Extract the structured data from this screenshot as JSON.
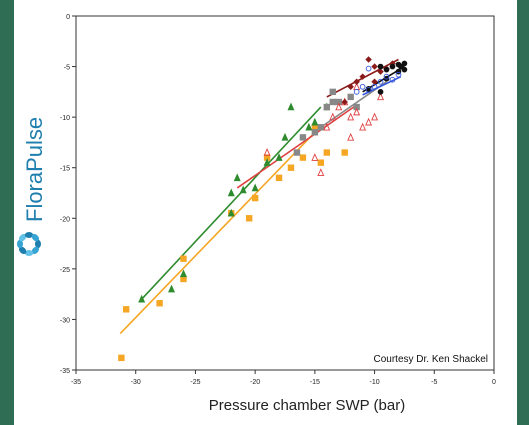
{
  "brand": {
    "name": "FloraPulse",
    "color": "#1f7fae",
    "logo_colors": [
      "#1f7fae",
      "#37a4d3",
      "#62c1e6"
    ]
  },
  "colors": {
    "background": "#2f6e54",
    "panel": "#ffffff"
  },
  "chart_data": {
    "type": "scatter",
    "title": "",
    "xlabel": "Pressure chamber SWP (bar)",
    "ylabel": "",
    "annotation": "Courtesy Dr. Ken Shackel",
    "xlim": [
      -35,
      0
    ],
    "ylim": [
      -35,
      0
    ],
    "x_ticks": [
      -35,
      -30,
      -25,
      -20,
      -15,
      -10,
      -5,
      0
    ],
    "y_ticks": [
      -35,
      -30,
      -25,
      -20,
      -15,
      -10,
      -5,
      0
    ],
    "grid": false,
    "legend": "none",
    "series": [
      {
        "marker": "square-filled",
        "color": "#f5a623",
        "points": [
          [
            -31.2,
            -33.8
          ],
          [
            -30.8,
            -29.0
          ],
          [
            -28.0,
            -28.4
          ],
          [
            -26.0,
            -26.0
          ],
          [
            -26.0,
            -24.0
          ],
          [
            -22.0,
            -19.5
          ],
          [
            -20.5,
            -20.0
          ],
          [
            -20.0,
            -18.0
          ],
          [
            -18.0,
            -16.0
          ],
          [
            -17.0,
            -15.0
          ],
          [
            -16.0,
            -14.0
          ],
          [
            -14.5,
            -14.5
          ],
          [
            -14.0,
            -13.5
          ],
          [
            -12.5,
            -13.5
          ],
          [
            -15.0,
            -11.0
          ],
          [
            -19.0,
            -14.0
          ]
        ],
        "fit": [
          [
            -31.3,
            -31.4
          ],
          [
            -15.0,
            -11.5
          ]
        ]
      },
      {
        "marker": "triangle-filled",
        "color": "#2e8b2e",
        "points": [
          [
            -29.5,
            -28.0
          ],
          [
            -27.0,
            -27.0
          ],
          [
            -26.0,
            -25.5
          ],
          [
            -22.0,
            -19.5
          ],
          [
            -22.0,
            -17.5
          ],
          [
            -21.5,
            -16.0
          ],
          [
            -21.0,
            -17.2
          ],
          [
            -20.0,
            -17.0
          ],
          [
            -19.0,
            -14.5
          ],
          [
            -18.0,
            -14.0
          ],
          [
            -17.5,
            -12.0
          ],
          [
            -17.0,
            -9.0
          ],
          [
            -15.5,
            -11.0
          ],
          [
            -15.0,
            -10.5
          ],
          [
            -14.0,
            -9.0
          ]
        ],
        "fit": [
          [
            -29.5,
            -28.0
          ],
          [
            -14.5,
            -9.0
          ]
        ]
      },
      {
        "marker": "square-filled",
        "color": "#888888",
        "points": [
          [
            -16.5,
            -13.5
          ],
          [
            -16.0,
            -12.0
          ],
          [
            -15.0,
            -11.5
          ],
          [
            -14.5,
            -11.0
          ],
          [
            -14.0,
            -9.0
          ],
          [
            -13.5,
            -8.5
          ],
          [
            -13.0,
            -8.5
          ],
          [
            -13.5,
            -7.5
          ],
          [
            -12.0,
            -8.0
          ],
          [
            -11.5,
            -9.0
          ]
        ],
        "fit": [
          [
            -14.5,
            -11.0
          ],
          [
            -9.0,
            -6.5
          ]
        ]
      },
      {
        "marker": "triangle-open",
        "color": "#e04040",
        "points": [
          [
            -19.0,
            -13.5
          ],
          [
            -15.0,
            -14.0
          ],
          [
            -14.5,
            -15.5
          ],
          [
            -12.0,
            -10.0
          ],
          [
            -11.5,
            -9.5
          ],
          [
            -11.0,
            -11.0
          ],
          [
            -10.5,
            -10.5
          ],
          [
            -10.0,
            -10.0
          ],
          [
            -11.5,
            -7.0
          ],
          [
            -12.5,
            -8.5
          ],
          [
            -13.0,
            -9.0
          ],
          [
            -13.5,
            -10.0
          ],
          [
            -14.0,
            -11.0
          ],
          [
            -12.0,
            -12.0
          ],
          [
            -9.5,
            -8.0
          ]
        ],
        "fit": [
          [
            -21.5,
            -17.0
          ],
          [
            -11.5,
            -8.8
          ]
        ]
      },
      {
        "marker": "diamond-filled",
        "color": "#8b1a1a",
        "points": [
          [
            -10.5,
            -4.3
          ],
          [
            -10.0,
            -5.0
          ],
          [
            -9.5,
            -5.5
          ],
          [
            -11.0,
            -6.0
          ],
          [
            -11.5,
            -6.5
          ],
          [
            -12.0,
            -7.0
          ],
          [
            -12.5,
            -8.5
          ],
          [
            -10.0,
            -6.5
          ],
          [
            -9.0,
            -5.2
          ],
          [
            -8.5,
            -4.7
          ]
        ],
        "fit": [
          [
            -14.0,
            -8.0
          ],
          [
            -8.0,
            -4.3
          ]
        ]
      },
      {
        "marker": "circle-filled",
        "color": "#111111",
        "points": [
          [
            -9.5,
            -5.0
          ],
          [
            -9.0,
            -5.3
          ],
          [
            -8.5,
            -5.0
          ],
          [
            -8.0,
            -5.5
          ],
          [
            -8.0,
            -4.8
          ],
          [
            -7.8,
            -5.0
          ],
          [
            -7.5,
            -4.7
          ],
          [
            -7.5,
            -5.3
          ],
          [
            -9.5,
            -7.5
          ],
          [
            -10.5,
            -7.2
          ],
          [
            -9.0,
            -6.2
          ]
        ],
        "fit": [
          [
            -11.0,
            -7.5
          ],
          [
            -7.5,
            -5.0
          ]
        ]
      },
      {
        "marker": "circle-open",
        "color": "#3355dd",
        "points": [
          [
            -11.5,
            -7.5
          ],
          [
            -11.0,
            -7.0
          ],
          [
            -10.5,
            -7.3
          ],
          [
            -10.0,
            -7.0
          ],
          [
            -9.5,
            -6.5
          ],
          [
            -9.0,
            -6.0
          ],
          [
            -8.5,
            -6.3
          ],
          [
            -8.0,
            -5.8
          ],
          [
            -10.5,
            -5.2
          ]
        ],
        "fit": [
          [
            -11.0,
            -7.8
          ],
          [
            -7.8,
            -6.0
          ]
        ]
      }
    ]
  }
}
